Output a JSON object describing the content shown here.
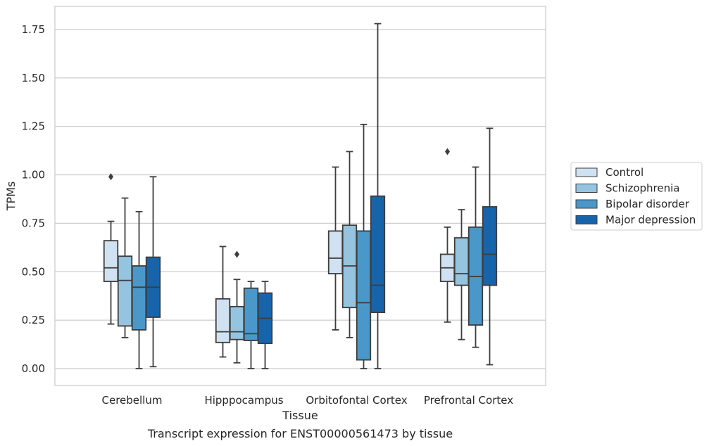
{
  "chart_data": {
    "type": "boxplot",
    "title": "Transcript expression for ENST00000561473 by tissue",
    "xlabel": "Tissue",
    "ylabel": "TPMs",
    "ylim": [
      -0.085,
      1.87
    ],
    "yticks": [
      0.0,
      0.25,
      0.5,
      0.75,
      1.0,
      1.25,
      1.5,
      1.75
    ],
    "ytick_labels": [
      "0.00",
      "0.25",
      "0.50",
      "0.75",
      "1.00",
      "1.25",
      "1.50",
      "1.75"
    ],
    "grid": true,
    "legend_position": "right",
    "categories": [
      "Cerebellum",
      "Hipppocampus",
      "Orbitofontal Cortex",
      "Prefrontal Cortex"
    ],
    "series": [
      {
        "name": "Control",
        "color": "#d0e1f2",
        "boxes": [
          {
            "whisker_low": 0.23,
            "q1": 0.45,
            "median": 0.52,
            "q3": 0.66,
            "whisker_high": 0.76,
            "outliers": [
              0.99
            ]
          },
          {
            "whisker_low": 0.06,
            "q1": 0.135,
            "median": 0.19,
            "q3": 0.36,
            "whisker_high": 0.63,
            "outliers": []
          },
          {
            "whisker_low": 0.2,
            "q1": 0.49,
            "median": 0.57,
            "q3": 0.71,
            "whisker_high": 1.04,
            "outliers": []
          },
          {
            "whisker_low": 0.24,
            "q1": 0.45,
            "median": 0.52,
            "q3": 0.59,
            "whisker_high": 0.73,
            "outliers": [
              1.12
            ]
          }
        ]
      },
      {
        "name": "Schizophrenia",
        "color": "#94c4df",
        "boxes": [
          {
            "whisker_low": 0.16,
            "q1": 0.22,
            "median": 0.455,
            "q3": 0.58,
            "whisker_high": 0.88,
            "outliers": []
          },
          {
            "whisker_low": 0.03,
            "q1": 0.15,
            "median": 0.19,
            "q3": 0.32,
            "whisker_high": 0.46,
            "outliers": [
              0.59
            ]
          },
          {
            "whisker_low": 0.16,
            "q1": 0.315,
            "median": 0.53,
            "q3": 0.74,
            "whisker_high": 1.12,
            "outliers": []
          },
          {
            "whisker_low": 0.15,
            "q1": 0.43,
            "median": 0.49,
            "q3": 0.675,
            "whisker_high": 0.82,
            "outliers": []
          }
        ]
      },
      {
        "name": "Bipolar disorder",
        "color": "#4a98c9",
        "boxes": [
          {
            "whisker_low": 0.0,
            "q1": 0.2,
            "median": 0.42,
            "q3": 0.53,
            "whisker_high": 0.81,
            "outliers": []
          },
          {
            "whisker_low": 0.0,
            "q1": 0.145,
            "median": 0.18,
            "q3": 0.415,
            "whisker_high": 0.45,
            "outliers": []
          },
          {
            "whisker_low": 0.0,
            "q1": 0.045,
            "median": 0.34,
            "q3": 0.71,
            "whisker_high": 1.26,
            "outliers": []
          },
          {
            "whisker_low": 0.11,
            "q1": 0.225,
            "median": 0.475,
            "q3": 0.73,
            "whisker_high": 1.04,
            "outliers": []
          }
        ]
      },
      {
        "name": "Major depression",
        "color": "#1764ab",
        "boxes": [
          {
            "whisker_low": 0.01,
            "q1": 0.265,
            "median": 0.42,
            "q3": 0.575,
            "whisker_high": 0.99,
            "outliers": []
          },
          {
            "whisker_low": 0.0,
            "q1": 0.13,
            "median": 0.26,
            "q3": 0.39,
            "whisker_high": 0.45,
            "outliers": []
          },
          {
            "whisker_low": 0.0,
            "q1": 0.29,
            "median": 0.43,
            "q3": 0.89,
            "whisker_high": 1.78,
            "outliers": []
          },
          {
            "whisker_low": 0.02,
            "q1": 0.43,
            "median": 0.59,
            "q3": 0.835,
            "whisker_high": 1.24,
            "outliers": []
          }
        ]
      }
    ]
  }
}
